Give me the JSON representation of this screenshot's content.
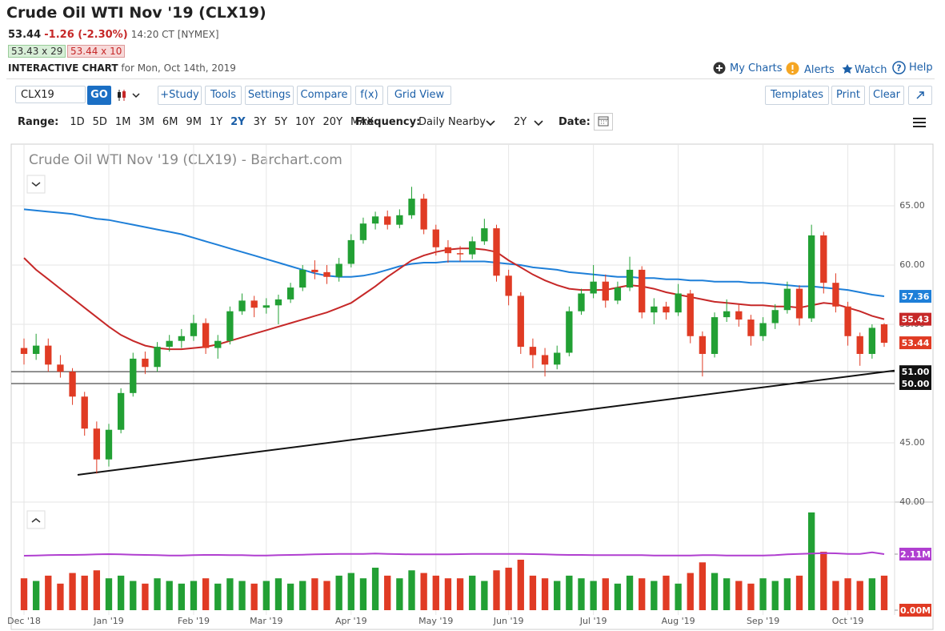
{
  "header": {
    "title": "Crude Oil WTI Nov '19 (CLX19)",
    "last": "53.44",
    "change": "-1.26 (-2.30%)",
    "time": "14:20 CT [NYMEX]",
    "bid": "53.43 x 29",
    "ask": "53.44 x 10",
    "chart_label": "INTERACTIVE CHART",
    "chart_date": "for Mon, Oct 14th, 2019",
    "links": [
      "My Charts",
      "Alerts",
      "Watch",
      "Help"
    ]
  },
  "toolbar": {
    "symbol": "CLX19",
    "go": "GO",
    "buttons": [
      "+Study",
      "Tools",
      "Settings",
      "Compare",
      "f(x)",
      "Grid View"
    ],
    "right_buttons": [
      "Templates",
      "Print",
      "Clear"
    ]
  },
  "range_bar": {
    "range_label": "Range:",
    "ranges": [
      "1D",
      "5D",
      "1M",
      "3M",
      "6M",
      "9M",
      "1Y",
      "2Y",
      "3Y",
      "5Y",
      "10Y",
      "20Y",
      "MAX"
    ],
    "selected": "2Y",
    "frequency_label": "Frequency:",
    "frequency": "Daily Nearby",
    "period": "2Y",
    "date_label": "Date:"
  },
  "chart_data": {
    "type": "candlestick",
    "title": "Crude Oil WTI Nov '19 (CLX19) - Barchart.com",
    "categories": [
      "Dec '18",
      null,
      null,
      null,
      null,
      null,
      null,
      "Jan '19",
      null,
      null,
      null,
      null,
      null,
      null,
      "Feb '19",
      null,
      null,
      null,
      null,
      null,
      "Mar '19",
      null,
      null,
      null,
      null,
      null,
      null,
      "Apr '19",
      null,
      null,
      null,
      null,
      null,
      null,
      "May '19",
      null,
      null,
      null,
      null,
      null,
      "Jun '19",
      null,
      null,
      null,
      null,
      null,
      null,
      "Jul '19",
      null,
      null,
      null,
      null,
      null,
      null,
      "Aug '19",
      null,
      null,
      null,
      null,
      null,
      null,
      "Sep '19",
      null,
      null,
      null,
      null,
      null,
      null,
      "Oct '19",
      null,
      null,
      null
    ],
    "open": [
      53.0,
      52.5,
      53.2,
      51.6,
      51.0,
      48.9,
      46.2,
      43.6,
      46.1,
      49.2,
      52.1,
      51.4,
      53.1,
      53.6,
      54.0,
      55.1,
      53.0,
      53.6,
      56.1,
      57.0,
      56.4,
      56.6,
      57.1,
      58.1,
      59.6,
      59.4,
      59.0,
      60.1,
      62.1,
      63.5,
      64.1,
      63.4,
      64.2,
      65.6,
      63.0,
      61.5,
      61.0,
      60.9,
      62.0,
      63.1,
      59.1,
      57.4,
      53.1,
      52.4,
      51.6,
      52.6,
      56.1,
      57.6,
      58.6,
      57.0,
      58.1,
      59.6,
      56.0,
      56.5,
      56.0,
      57.6,
      54.0,
      52.5,
      55.6,
      56.1,
      55.4,
      54.0,
      55.1,
      56.2,
      58.0,
      55.5,
      62.5,
      58.5,
      56.5,
      54.0,
      52.5,
      55.0
    ],
    "high": [
      53.8,
      54.2,
      53.8,
      52.4,
      51.3,
      49.3,
      46.8,
      46.6,
      49.6,
      52.6,
      52.7,
      53.5,
      54.1,
      54.6,
      55.8,
      55.5,
      54.1,
      56.5,
      57.6,
      57.4,
      57.2,
      57.5,
      58.5,
      60.0,
      60.4,
      60.0,
      60.6,
      62.6,
      64.0,
      64.5,
      64.6,
      64.7,
      66.6,
      66.0,
      63.4,
      62.1,
      61.6,
      62.4,
      63.9,
      63.4,
      59.6,
      57.7,
      53.8,
      53.0,
      53.2,
      56.5,
      58.0,
      60.0,
      59.2,
      58.6,
      60.7,
      59.9,
      57.2,
      56.9,
      58.4,
      57.9,
      54.4,
      56.0,
      57.1,
      56.7,
      55.8,
      55.6,
      56.7,
      58.6,
      58.3,
      63.4,
      62.8,
      59.3,
      56.9,
      54.3,
      55.0,
      55.1
    ],
    "low": [
      51.6,
      52.0,
      51.0,
      50.5,
      48.2,
      45.6,
      42.4,
      43.0,
      45.8,
      48.9,
      50.8,
      51.0,
      52.7,
      53.0,
      53.6,
      52.5,
      52.1,
      53.3,
      55.8,
      55.6,
      55.9,
      55.0,
      56.8,
      57.8,
      58.8,
      58.4,
      58.6,
      59.8,
      61.8,
      63.0,
      63.0,
      63.1,
      63.9,
      62.6,
      60.8,
      60.2,
      60.3,
      60.5,
      61.7,
      58.6,
      56.6,
      52.5,
      51.3,
      50.6,
      51.2,
      52.3,
      55.8,
      57.2,
      56.4,
      56.7,
      57.8,
      55.5,
      55.0,
      55.4,
      55.7,
      53.4,
      50.6,
      52.2,
      55.2,
      54.8,
      53.2,
      53.6,
      54.6,
      55.9,
      54.9,
      55.2,
      57.6,
      56.0,
      53.2,
      51.5,
      52.1,
      53.1
    ],
    "close": [
      52.5,
      53.2,
      51.6,
      51.0,
      48.9,
      46.2,
      43.6,
      46.1,
      49.2,
      52.1,
      51.4,
      53.1,
      53.6,
      54.0,
      55.1,
      53.0,
      53.6,
      56.1,
      57.0,
      56.4,
      56.6,
      57.1,
      58.1,
      59.6,
      59.4,
      59.0,
      60.1,
      62.1,
      63.5,
      64.1,
      63.4,
      64.2,
      65.6,
      63.0,
      61.5,
      61.0,
      60.9,
      62.0,
      63.1,
      59.1,
      57.4,
      53.1,
      52.4,
      51.6,
      52.6,
      56.1,
      57.6,
      58.6,
      57.0,
      58.1,
      59.6,
      56.0,
      56.5,
      56.0,
      57.6,
      54.0,
      52.5,
      55.6,
      56.1,
      55.4,
      54.0,
      55.1,
      56.2,
      58.0,
      55.5,
      62.5,
      58.5,
      56.5,
      54.0,
      52.5,
      54.7,
      53.44
    ],
    "up_color": "#22a034",
    "down_color": "#e03b24",
    "series": [
      {
        "color": "#1e7fd8",
        "values": [
          64.7,
          64.6,
          64.5,
          64.4,
          64.3,
          64.1,
          63.9,
          63.8,
          63.6,
          63.4,
          63.2,
          63.0,
          62.8,
          62.6,
          62.3,
          62.0,
          61.7,
          61.4,
          61.1,
          60.8,
          60.5,
          60.2,
          59.9,
          59.6,
          59.3,
          59.1,
          59.0,
          59.0,
          59.1,
          59.3,
          59.6,
          59.9,
          60.1,
          60.2,
          60.2,
          60.3,
          60.3,
          60.3,
          60.3,
          60.2,
          60.1,
          60.0,
          59.8,
          59.7,
          59.6,
          59.4,
          59.3,
          59.2,
          59.1,
          59.0,
          59.0,
          58.9,
          58.9,
          58.8,
          58.8,
          58.7,
          58.7,
          58.6,
          58.6,
          58.6,
          58.5,
          58.5,
          58.4,
          58.3,
          58.2,
          58.2,
          58.1,
          58.0,
          57.9,
          57.7,
          57.5,
          57.36
        ]
      },
      {
        "color": "#c62828",
        "values": [
          60.6,
          59.6,
          58.8,
          58.0,
          57.2,
          56.4,
          55.6,
          54.8,
          54.1,
          53.6,
          53.2,
          53.0,
          52.9,
          52.9,
          53.0,
          53.1,
          53.3,
          53.6,
          53.9,
          54.2,
          54.5,
          54.8,
          55.1,
          55.4,
          55.7,
          56.0,
          56.4,
          56.8,
          57.5,
          58.2,
          59.0,
          59.7,
          60.4,
          60.8,
          61.1,
          61.3,
          61.4,
          61.4,
          61.3,
          61.1,
          60.4,
          59.8,
          59.2,
          58.7,
          58.3,
          58.0,
          57.9,
          57.9,
          57.9,
          58.1,
          58.3,
          58.2,
          58.0,
          57.7,
          57.5,
          57.3,
          57.1,
          56.9,
          56.8,
          56.7,
          56.6,
          56.6,
          56.5,
          56.5,
          56.4,
          56.6,
          56.8,
          56.7,
          56.4,
          56.1,
          55.7,
          55.43
        ]
      }
    ],
    "ylim": [
      40,
      70.2
    ],
    "yticks": [
      {
        "value": 40,
        "label": "40.00"
      },
      {
        "value": 45,
        "label": "45.00"
      },
      {
        "value": 50,
        "label": "50.00"
      },
      {
        "value": 55,
        "label": "55.00"
      },
      {
        "value": 60,
        "label": "60.00"
      },
      {
        "value": 65,
        "label": "65.00"
      }
    ],
    "hlines": [
      {
        "value": 51,
        "label": "51.00"
      },
      {
        "value": 50,
        "label": "50.00"
      }
    ],
    "trendline": {
      "start": 42.3,
      "end": 51.1
    },
    "grid": true,
    "volume": {
      "values": [
        1.2,
        1.1,
        1.3,
        1.0,
        1.4,
        1.3,
        1.5,
        1.2,
        1.3,
        1.1,
        1.0,
        1.2,
        1.1,
        1.0,
        1.1,
        1.2,
        1.0,
        1.2,
        1.1,
        1.0,
        1.1,
        1.2,
        1.0,
        1.1,
        1.2,
        1.1,
        1.3,
        1.4,
        1.2,
        1.6,
        1.3,
        1.2,
        1.5,
        1.4,
        1.3,
        1.2,
        1.2,
        1.3,
        1.1,
        1.5,
        1.6,
        1.9,
        1.3,
        1.2,
        1.1,
        1.3,
        1.2,
        1.1,
        1.2,
        1.0,
        1.3,
        1.2,
        1.1,
        1.3,
        1.0,
        1.4,
        1.8,
        1.4,
        1.2,
        1.1,
        1.0,
        1.2,
        1.1,
        1.2,
        1.3,
        3.68,
        2.2,
        1.1,
        1.2,
        1.1,
        1.2,
        1.3
      ],
      "average": {
        "color": "#b03fd0",
        "values": [
          2.05,
          2.06,
          2.07,
          2.08,
          2.08,
          2.09,
          2.1,
          2.11,
          2.1,
          2.09,
          2.08,
          2.07,
          2.06,
          2.06,
          2.07,
          2.08,
          2.08,
          2.07,
          2.07,
          2.06,
          2.06,
          2.07,
          2.08,
          2.09,
          2.1,
          2.11,
          2.12,
          2.12,
          2.12,
          2.13,
          2.12,
          2.11,
          2.1,
          2.1,
          2.1,
          2.1,
          2.11,
          2.12,
          2.12,
          2.12,
          2.12,
          2.12,
          2.11,
          2.1,
          2.09,
          2.08,
          2.08,
          2.07,
          2.07,
          2.07,
          2.07,
          2.07,
          2.06,
          2.06,
          2.06,
          2.06,
          2.07,
          2.07,
          2.06,
          2.06,
          2.06,
          2.06,
          2.07,
          2.1,
          2.12,
          2.13,
          2.15,
          2.14,
          2.12,
          2.12,
          2.18,
          2.11
        ]
      },
      "ylim": [
        0,
        4.07
      ],
      "yticks": [
        {
          "value": 0,
          "label": "0.00M"
        },
        {
          "value": 2.11,
          "label": "2.11M"
        }
      ]
    }
  }
}
